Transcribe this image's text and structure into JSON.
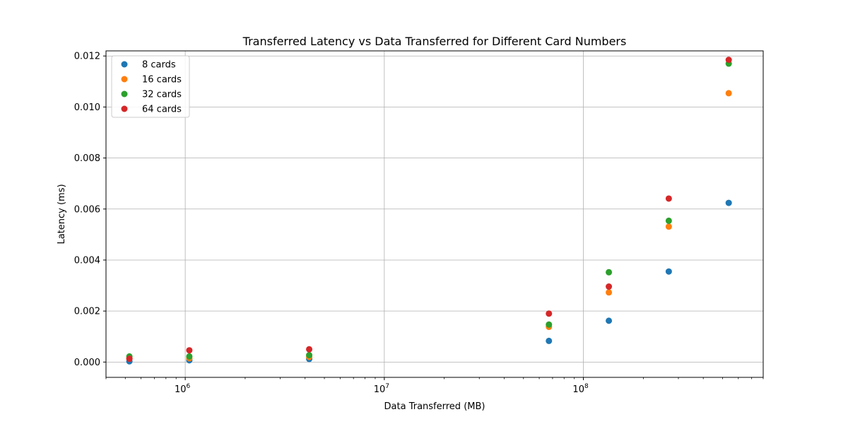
{
  "chart_data": {
    "type": "scatter",
    "title": "Transferred Latency vs Data Transferred for Different Card Numbers",
    "xlabel": "Data Transferred (MB)",
    "ylabel": "Latency (ms)",
    "xscale": "log",
    "xlim": [
      400000,
      800000000
    ],
    "ylim": [
      -0.0006,
      0.0122
    ],
    "grid": true,
    "legend_position": "top-left",
    "x_ticks": [
      {
        "value": 1000000,
        "label": "10",
        "exp": "6"
      },
      {
        "value": 10000000,
        "label": "10",
        "exp": "7"
      },
      {
        "value": 100000000,
        "label": "10",
        "exp": "8"
      }
    ],
    "y_ticks": [
      {
        "value": 0.0,
        "label": "0.000"
      },
      {
        "value": 0.002,
        "label": "0.002"
      },
      {
        "value": 0.004,
        "label": "0.004"
      },
      {
        "value": 0.006,
        "label": "0.006"
      },
      {
        "value": 0.008,
        "label": "0.008"
      },
      {
        "value": 0.01,
        "label": "0.010"
      },
      {
        "value": 0.012,
        "label": "0.012"
      }
    ],
    "x": [
      524288,
      1048576,
      4194304,
      67108864,
      134217728,
      268435456,
      536870912
    ],
    "series": [
      {
        "name": "8 cards",
        "color": "#1f77b4",
        "values": [
          3e-05,
          7e-05,
          0.00012,
          0.00083,
          0.00162,
          0.00355,
          0.00624
        ]
      },
      {
        "name": "16 cards",
        "color": "#ff7f0e",
        "values": [
          0.00015,
          0.00015,
          0.0002,
          0.00138,
          0.00273,
          0.00531,
          0.01054
        ]
      },
      {
        "name": "32 cards",
        "color": "#2ca02c",
        "values": [
          0.00022,
          0.00022,
          0.00027,
          0.00147,
          0.00352,
          0.00554,
          0.0117
        ]
      },
      {
        "name": "64 cards",
        "color": "#d62728",
        "values": [
          0.00013,
          0.00046,
          0.0005,
          0.0019,
          0.00296,
          0.00641,
          0.01185
        ]
      }
    ]
  }
}
